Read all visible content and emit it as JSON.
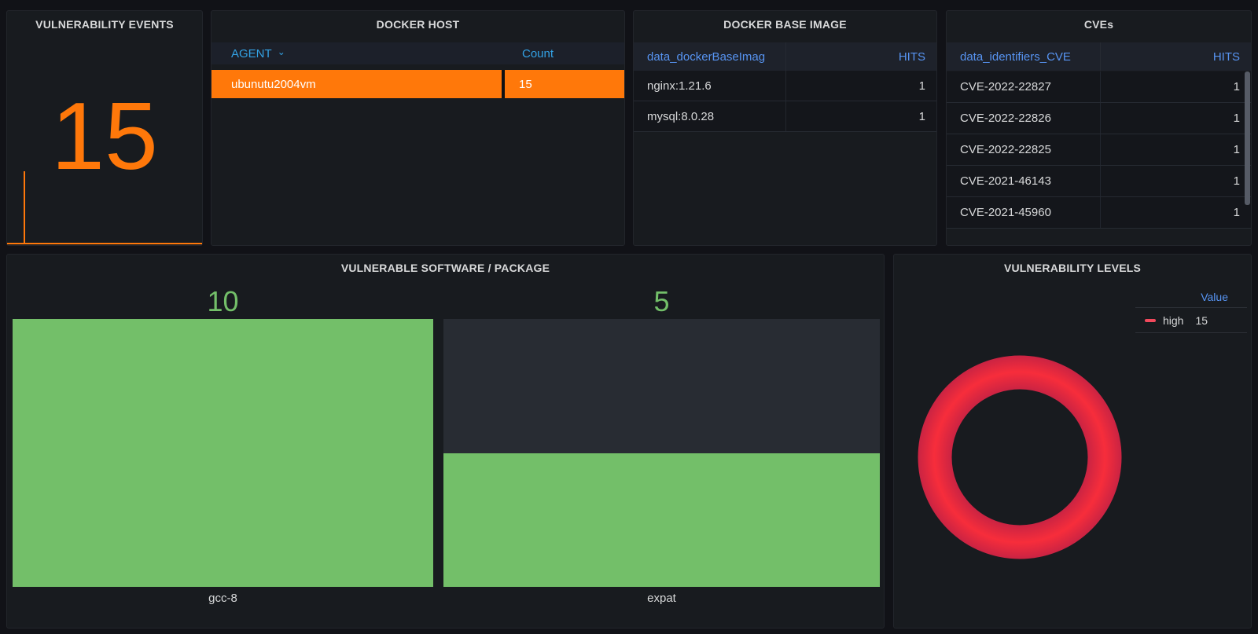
{
  "colors": {
    "page_bg": "#111217",
    "panel_bg": "#181B1F",
    "orange": "#FF780A",
    "green": "#73BF69",
    "red": "#E02F44",
    "legend_red": "#F2495C",
    "ring_mid": "#F72D3B",
    "ring_edge": "#C92343",
    "blue_header": "#33A2E5",
    "blue_link": "#5794F2"
  },
  "panels": {
    "vulnerability_events": {
      "title": "VULNERABILITY EVENTS",
      "value": "15"
    },
    "docker_host": {
      "title": "DOCKER HOST",
      "columns": [
        "AGENT",
        "Count"
      ],
      "sort_icon": "⌄",
      "rows": [
        {
          "agent": "ubunutu2004vm",
          "count": "15"
        }
      ]
    },
    "docker_base_image": {
      "title": "DOCKER BASE IMAGE",
      "columns": [
        "data_dockerBaseImag",
        "HITS"
      ],
      "rows": [
        {
          "name": "nginx:1.21.6",
          "hits": "1"
        },
        {
          "name": "mysql:8.0.28",
          "hits": "1"
        }
      ]
    },
    "cves": {
      "title": "CVEs",
      "columns": [
        "data_identifiers_CVE",
        "HITS"
      ],
      "rows": [
        {
          "name": "CVE-2022-22827",
          "hits": "1"
        },
        {
          "name": "CVE-2022-22826",
          "hits": "1"
        },
        {
          "name": "CVE-2022-22825",
          "hits": "1"
        },
        {
          "name": "CVE-2021-46143",
          "hits": "1"
        },
        {
          "name": "CVE-2021-45960",
          "hits": "1"
        }
      ]
    },
    "vulnerable_software": {
      "title": "VULNERABLE SOFTWARE / PACKAGE",
      "bars": [
        {
          "label": "gcc-8",
          "value": "10"
        },
        {
          "label": "expat",
          "value": "5"
        }
      ]
    },
    "vulnerability_levels": {
      "title": "VULNERABILITY LEVELS",
      "legend_header": "Value",
      "legend": [
        {
          "label": "high",
          "value": "15"
        }
      ]
    }
  },
  "chart_data": [
    {
      "panel": "VULNERABILITY EVENTS",
      "type": "stat",
      "value": 15,
      "color": "#FF780A",
      "sparkline": "flat baseline with single spike near left edge"
    },
    {
      "panel": "DOCKER HOST",
      "type": "table",
      "columns": [
        "AGENT",
        "Count"
      ],
      "rows": [
        [
          "ubunutu2004vm",
          15
        ]
      ],
      "row_highlight_color": "#FF780A"
    },
    {
      "panel": "DOCKER BASE IMAGE",
      "type": "table",
      "columns": [
        "data_dockerBaseImag",
        "HITS"
      ],
      "rows": [
        [
          "nginx:1.21.6",
          1
        ],
        [
          "mysql:8.0.28",
          1
        ]
      ]
    },
    {
      "panel": "CVEs",
      "type": "table",
      "columns": [
        "data_identifiers_CVE",
        "HITS"
      ],
      "rows": [
        [
          "CVE-2022-22827",
          1
        ],
        [
          "CVE-2022-22826",
          1
        ],
        [
          "CVE-2022-22825",
          1
        ],
        [
          "CVE-2021-46143",
          1
        ],
        [
          "CVE-2021-45960",
          1
        ]
      ]
    },
    {
      "panel": "VULNERABLE SOFTWARE / PACKAGE",
      "type": "bar",
      "categories": [
        "gcc-8",
        "expat"
      ],
      "values": [
        10,
        5
      ],
      "bar_color": "#73BF69",
      "ylim": [
        0,
        10
      ],
      "value_labels": "above bars"
    },
    {
      "panel": "VULNERABILITY LEVELS",
      "type": "pie",
      "donut": true,
      "slices": [
        {
          "label": "high",
          "value": 15,
          "color": "#E02F44"
        }
      ],
      "legend_position": "top-right",
      "legend_columns": [
        "Value"
      ]
    }
  ]
}
